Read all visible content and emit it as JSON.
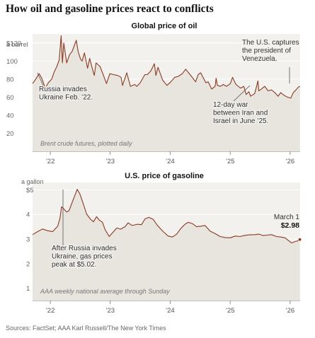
{
  "title": "How oil and gasoline prices react to conflicts",
  "source": "Sources: FactSet; AAA  Karl Russell/The New York Times",
  "chart_data": [
    {
      "type": "line",
      "title": "Global price of oil",
      "unit_label": "a barrel",
      "ytick_labels": [
        "$120",
        "100",
        "80",
        "60",
        "40",
        "20"
      ],
      "yticks": [
        120,
        100,
        80,
        60,
        40,
        20
      ],
      "ylim": [
        0,
        130
      ],
      "xlim": [
        "2021-09-15",
        "2026-03-03"
      ],
      "xtick_labels": [
        "’22",
        "’23",
        "’24",
        "’25",
        "’26"
      ],
      "xticks": [
        "2022-01-01",
        "2023-01-01",
        "2024-01-01",
        "2025-01-01",
        "2026-01-01"
      ],
      "note": "Brent crude futures, plotted daily",
      "color": "#8b3a22",
      "series": [
        {
          "x": [
            "2021-09-15",
            "2021-10-01",
            "2021-10-25",
            "2021-11-10",
            "2021-12-01",
            "2021-12-20",
            "2022-01-10",
            "2022-01-25",
            "2022-02-10",
            "2022-02-24",
            "2022-03-08",
            "2022-03-16",
            "2022-03-24",
            "2022-04-11",
            "2022-04-28",
            "2022-05-15",
            "2022-06-08",
            "2022-06-20",
            "2022-07-05",
            "2022-07-14",
            "2022-07-28",
            "2022-08-16",
            "2022-08-29",
            "2022-09-15",
            "2022-09-26",
            "2022-10-07",
            "2022-10-31",
            "2022-11-15",
            "2022-12-09",
            "2022-12-30",
            "2023-01-20",
            "2023-02-15",
            "2023-03-08",
            "2023-03-17",
            "2023-04-12",
            "2023-05-04",
            "2023-05-31",
            "2023-06-12",
            "2023-07-03",
            "2023-07-31",
            "2023-08-15",
            "2023-09-05",
            "2023-09-27",
            "2023-10-06",
            "2023-10-19",
            "2023-11-16",
            "2023-12-13",
            "2024-01-05",
            "2024-01-29",
            "2024-02-20",
            "2024-03-15",
            "2024-04-05",
            "2024-04-22",
            "2024-05-10",
            "2024-06-04",
            "2024-06-20",
            "2024-07-05",
            "2024-07-25",
            "2024-08-05",
            "2024-08-20",
            "2024-09-10",
            "2024-10-01",
            "2024-10-07",
            "2024-10-15",
            "2024-11-01",
            "2024-11-20",
            "2024-12-10",
            "2025-01-02",
            "2025-01-15",
            "2025-02-05",
            "2025-03-05",
            "2025-03-25",
            "2025-04-08",
            "2025-04-25",
            "2025-05-05",
            "2025-05-30",
            "2025-06-12",
            "2025-06-19",
            "2025-06-24",
            "2025-07-10",
            "2025-07-30",
            "2025-08-20",
            "2025-09-10",
            "2025-09-30",
            "2025-10-20",
            "2025-11-05",
            "2025-11-25",
            "2025-12-16",
            "2026-01-05",
            "2026-01-20",
            "2026-02-05",
            "2026-02-20",
            "2026-03-02"
          ],
          "y": [
            75,
            79,
            86,
            81,
            70,
            76,
            80,
            88,
            94,
            101,
            128,
            98,
            120,
            98,
            107,
            111,
            123,
            110,
            102,
            100,
            109,
            92,
            103,
            91,
            84,
            98,
            94,
            87,
            75,
            86,
            85,
            84,
            82,
            73,
            87,
            72,
            74,
            72,
            76,
            85,
            85,
            89,
            97,
            84,
            93,
            79,
            73,
            77,
            82,
            83,
            86,
            91,
            87,
            83,
            77,
            85,
            87,
            80,
            76,
            77,
            69,
            72,
            81,
            73,
            72,
            74,
            72,
            75,
            82,
            74,
            70,
            72,
            63,
            66,
            61,
            64,
            73,
            78,
            67,
            69,
            72,
            67,
            68,
            65,
            61,
            65,
            62,
            60,
            59,
            65,
            68,
            71,
            72
          ]
        }
      ],
      "annotations": [
        {
          "label_lines": [
            "Russia invades",
            "Ukraine Feb. ’22."
          ],
          "x": "2021-09-20",
          "y": 79
        },
        {
          "label_lines": [
            "12-day war",
            "between Iran and",
            "Israel in June ’25."
          ],
          "x": "2025-06-16",
          "y": 70
        },
        {
          "label_lines": [
            "The U.S. captures",
            "the president of",
            "Venezuela."
          ],
          "x": "2026-01-05",
          "y": 62
        }
      ]
    },
    {
      "type": "line",
      "title": "U.S. price of gasoline",
      "unit_label": "a gallon",
      "ytick_labels": [
        "$5",
        "4",
        "3",
        "2",
        "1"
      ],
      "yticks": [
        5,
        4,
        3,
        2,
        1
      ],
      "ylim": [
        0.5,
        5.3
      ],
      "xlim": [
        "2021-09-15",
        "2026-03-03"
      ],
      "xtick_labels": [
        "’22",
        "’23",
        "’24",
        "’25",
        "’26"
      ],
      "xticks": [
        "2022-01-01",
        "2023-01-01",
        "2024-01-01",
        "2025-01-01",
        "2026-01-01"
      ],
      "note": "AAA weekly national average through Sunday",
      "color": "#8b3a22",
      "series": [
        {
          "x": [
            "2021-09-15",
            "2021-10-15",
            "2021-11-15",
            "2021-12-15",
            "2022-01-15",
            "2022-02-15",
            "2022-03-01",
            "2022-03-11",
            "2022-03-25",
            "2022-04-10",
            "2022-04-25",
            "2022-05-15",
            "2022-06-14",
            "2022-07-01",
            "2022-07-20",
            "2022-08-10",
            "2022-09-01",
            "2022-09-21",
            "2022-10-10",
            "2022-10-25",
            "2022-11-15",
            "2022-12-01",
            "2022-12-26",
            "2023-01-15",
            "2023-02-10",
            "2023-03-05",
            "2023-04-01",
            "2023-04-20",
            "2023-05-15",
            "2023-06-15",
            "2023-07-10",
            "2023-08-01",
            "2023-08-25",
            "2023-09-20",
            "2023-10-10",
            "2023-10-30",
            "2023-11-20",
            "2023-12-20",
            "2024-01-15",
            "2024-02-10",
            "2024-03-05",
            "2024-04-01",
            "2024-04-20",
            "2024-05-15",
            "2024-06-10",
            "2024-07-05",
            "2024-08-01",
            "2024-09-01",
            "2024-10-01",
            "2024-11-01",
            "2024-12-01",
            "2025-01-01",
            "2025-02-01",
            "2025-03-01",
            "2025-04-01",
            "2025-05-01",
            "2025-06-01",
            "2025-06-25",
            "2025-07-20",
            "2025-08-15",
            "2025-09-10",
            "2025-10-10",
            "2025-11-05",
            "2025-12-01",
            "2025-12-20",
            "2026-01-10",
            "2026-02-01",
            "2026-02-15",
            "2026-03-01"
          ],
          "y": [
            3.18,
            3.3,
            3.41,
            3.34,
            3.3,
            3.52,
            3.84,
            4.31,
            4.22,
            4.1,
            4.15,
            4.5,
            5.02,
            4.82,
            4.45,
            4.02,
            3.82,
            3.7,
            3.91,
            3.78,
            3.68,
            3.38,
            3.1,
            3.25,
            3.45,
            3.4,
            3.5,
            3.66,
            3.55,
            3.6,
            3.58,
            3.82,
            3.88,
            3.8,
            3.6,
            3.45,
            3.3,
            3.12,
            3.08,
            3.2,
            3.42,
            3.6,
            3.68,
            3.63,
            3.5,
            3.52,
            3.55,
            3.32,
            3.22,
            3.1,
            3.06,
            3.05,
            3.12,
            3.1,
            3.15,
            3.17,
            3.18,
            3.2,
            3.14,
            3.16,
            3.18,
            3.1,
            3.08,
            3.05,
            2.95,
            2.84,
            2.9,
            2.92,
            2.98
          ]
        }
      ],
      "annotations": [
        {
          "label_lines": [
            "After Russia invades",
            "Ukraine, gas prices",
            "peak at $5.02."
          ],
          "x": "2022-06-14",
          "y": 5.02
        },
        {
          "label_lines": [
            "March 1"
          ],
          "value_label": "$2.98",
          "x": "2026-03-01",
          "y": 2.98
        }
      ]
    }
  ]
}
